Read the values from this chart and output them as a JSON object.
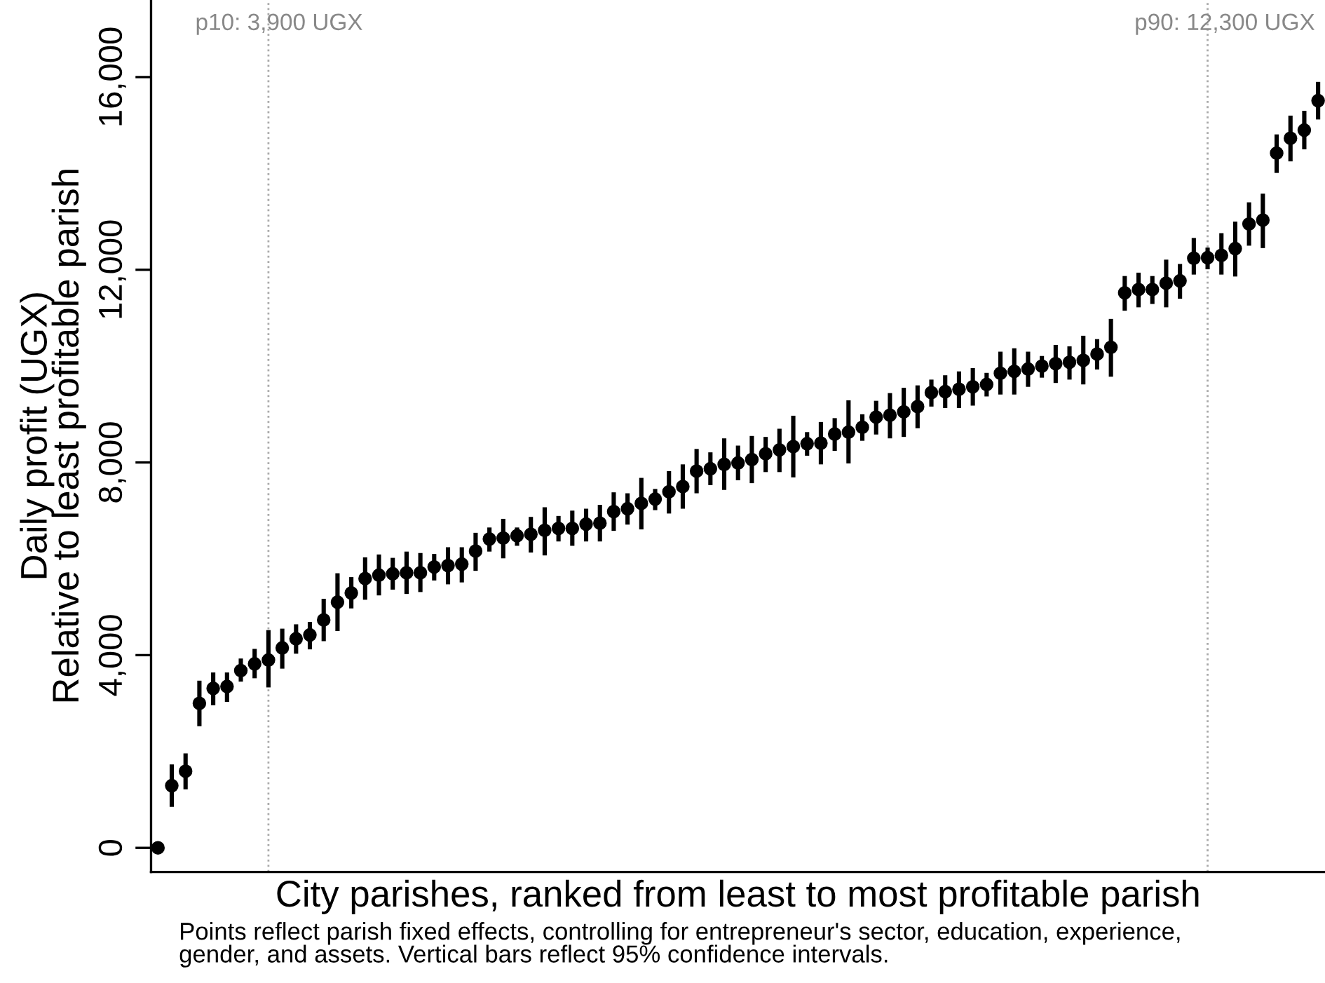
{
  "chart_data": {
    "type": "scatter",
    "xlabel": "City parishes, ranked from least to most profitable parish",
    "ylabel": "Daily profit (UGX)\nRelative to least profitable parish",
    "categories": [
      null,
      null,
      null,
      null,
      null,
      null,
      null,
      null,
      null,
      null,
      null,
      null,
      null,
      null,
      null,
      null,
      null,
      null,
      null,
      null,
      null,
      null,
      null,
      null,
      null,
      null,
      null,
      null,
      null,
      null,
      null,
      null,
      null,
      null,
      null,
      null,
      null,
      null,
      null,
      null,
      null,
      null,
      null,
      null,
      null,
      null,
      null,
      null,
      null,
      null,
      null,
      null,
      null,
      null,
      null,
      null,
      null,
      null,
      null,
      null,
      null,
      null,
      null,
      null,
      null,
      null,
      null,
      null,
      null,
      null,
      null,
      null,
      null,
      null,
      null,
      null,
      null,
      null,
      null,
      null,
      null,
      null,
      null,
      null,
      null
    ],
    "series": [
      {
        "color": "#000000",
        "values": [
          0,
          1290,
          1590,
          3000,
          3310,
          3350,
          3680,
          3820,
          3900,
          4150,
          4340,
          4420,
          4730,
          5100,
          5290,
          5590,
          5660,
          5690,
          5710,
          5710,
          5830,
          5860,
          5890,
          6160,
          6410,
          6430,
          6480,
          6510,
          6590,
          6630,
          6630,
          6720,
          6740,
          6980,
          7040,
          7150,
          7240,
          7390,
          7500,
          7820,
          7870,
          7960,
          7990,
          8060,
          8180,
          8260,
          8330,
          8390,
          8400,
          8590,
          8630,
          8730,
          8940,
          8980,
          9050,
          9160,
          9450,
          9470,
          9520,
          9570,
          9620,
          9850,
          9890,
          9940,
          10000,
          10050,
          10080,
          10120,
          10250,
          10390,
          11520,
          11590,
          11590,
          11720,
          11770,
          12240,
          12250,
          12300,
          12440,
          12950,
          13030,
          14420,
          14730,
          14900,
          15510
        ],
        "errors": [
          null,
          [
            850,
            1730
          ],
          [
            1215,
            1960
          ],
          [
            2525,
            3470
          ],
          [
            2960,
            3640
          ],
          [
            3030,
            3640
          ],
          [
            3450,
            3930
          ],
          [
            3520,
            4130
          ],
          [
            3330,
            4520
          ],
          [
            3720,
            4550
          ],
          [
            4030,
            4640
          ],
          [
            4120,
            4690
          ],
          [
            4290,
            5170
          ],
          [
            4500,
            5700
          ],
          [
            4970,
            5620
          ],
          [
            5150,
            6030
          ],
          [
            5240,
            6090
          ],
          [
            5360,
            6020
          ],
          [
            5270,
            6150
          ],
          [
            5310,
            6120
          ],
          [
            5550,
            6100
          ],
          [
            5470,
            6240
          ],
          [
            5510,
            6240
          ],
          [
            5750,
            6540
          ],
          [
            6150,
            6650
          ],
          [
            6010,
            6830
          ],
          [
            6270,
            6650
          ],
          [
            6130,
            6870
          ],
          [
            6070,
            7070
          ],
          [
            6360,
            6890
          ],
          [
            6270,
            7000
          ],
          [
            6360,
            7040
          ],
          [
            6360,
            7120
          ],
          [
            6580,
            7380
          ],
          [
            6710,
            7360
          ],
          [
            6610,
            7680
          ],
          [
            7010,
            7450
          ],
          [
            6940,
            7820
          ],
          [
            7040,
            7960
          ],
          [
            7360,
            8280
          ],
          [
            7530,
            8210
          ],
          [
            7430,
            8500
          ],
          [
            7630,
            8350
          ],
          [
            7570,
            8550
          ],
          [
            7800,
            8530
          ],
          [
            7800,
            8700
          ],
          [
            7690,
            8970
          ],
          [
            8140,
            8630
          ],
          [
            7960,
            8840
          ],
          [
            8240,
            8920
          ],
          [
            7980,
            9290
          ],
          [
            8450,
            9000
          ],
          [
            8580,
            9280
          ],
          [
            8500,
            9440
          ],
          [
            8530,
            9550
          ],
          [
            8710,
            9600
          ],
          [
            9160,
            9720
          ],
          [
            9130,
            9810
          ],
          [
            9130,
            9890
          ],
          [
            9180,
            9960
          ],
          [
            9370,
            9860
          ],
          [
            9410,
            10300
          ],
          [
            9410,
            10370
          ],
          [
            9570,
            10300
          ],
          [
            9760,
            10210
          ],
          [
            9650,
            10440
          ],
          [
            9720,
            10410
          ],
          [
            9620,
            10630
          ],
          [
            9930,
            10560
          ],
          [
            9780,
            10980
          ],
          [
            11150,
            11870
          ],
          [
            11220,
            11940
          ],
          [
            11290,
            11870
          ],
          [
            11220,
            12210
          ],
          [
            11400,
            12120
          ],
          [
            11900,
            12660
          ],
          [
            12010,
            12460
          ],
          [
            11900,
            12760
          ],
          [
            11860,
            13000
          ],
          [
            12500,
            13400
          ],
          [
            12450,
            13580
          ],
          [
            14010,
            14810
          ],
          [
            14250,
            15200
          ],
          [
            14500,
            15300
          ],
          [
            15120,
            15900
          ]
        ]
      }
    ],
    "marker": "circle",
    "ylim": [
      -500,
      17600
    ],
    "yticks": [
      {
        "value": 0,
        "label": "0"
      },
      {
        "value": 4000,
        "label": "4,000"
      },
      {
        "value": 8000,
        "label": "8,000"
      },
      {
        "value": 12000,
        "label": "12,000"
      },
      {
        "value": 16000,
        "label": "16,000"
      }
    ],
    "tick_labels": "y",
    "grid": false,
    "legend": false,
    "annotations": [
      "p10: 3,900 UGX",
      "p90: 12,300 UGX",
      "Points reflect parish fixed effects, controlling for entrepreneur's sector, education, experience,\ngender, and assets. Vertical bars reflect 95% confidence intervals."
    ]
  }
}
